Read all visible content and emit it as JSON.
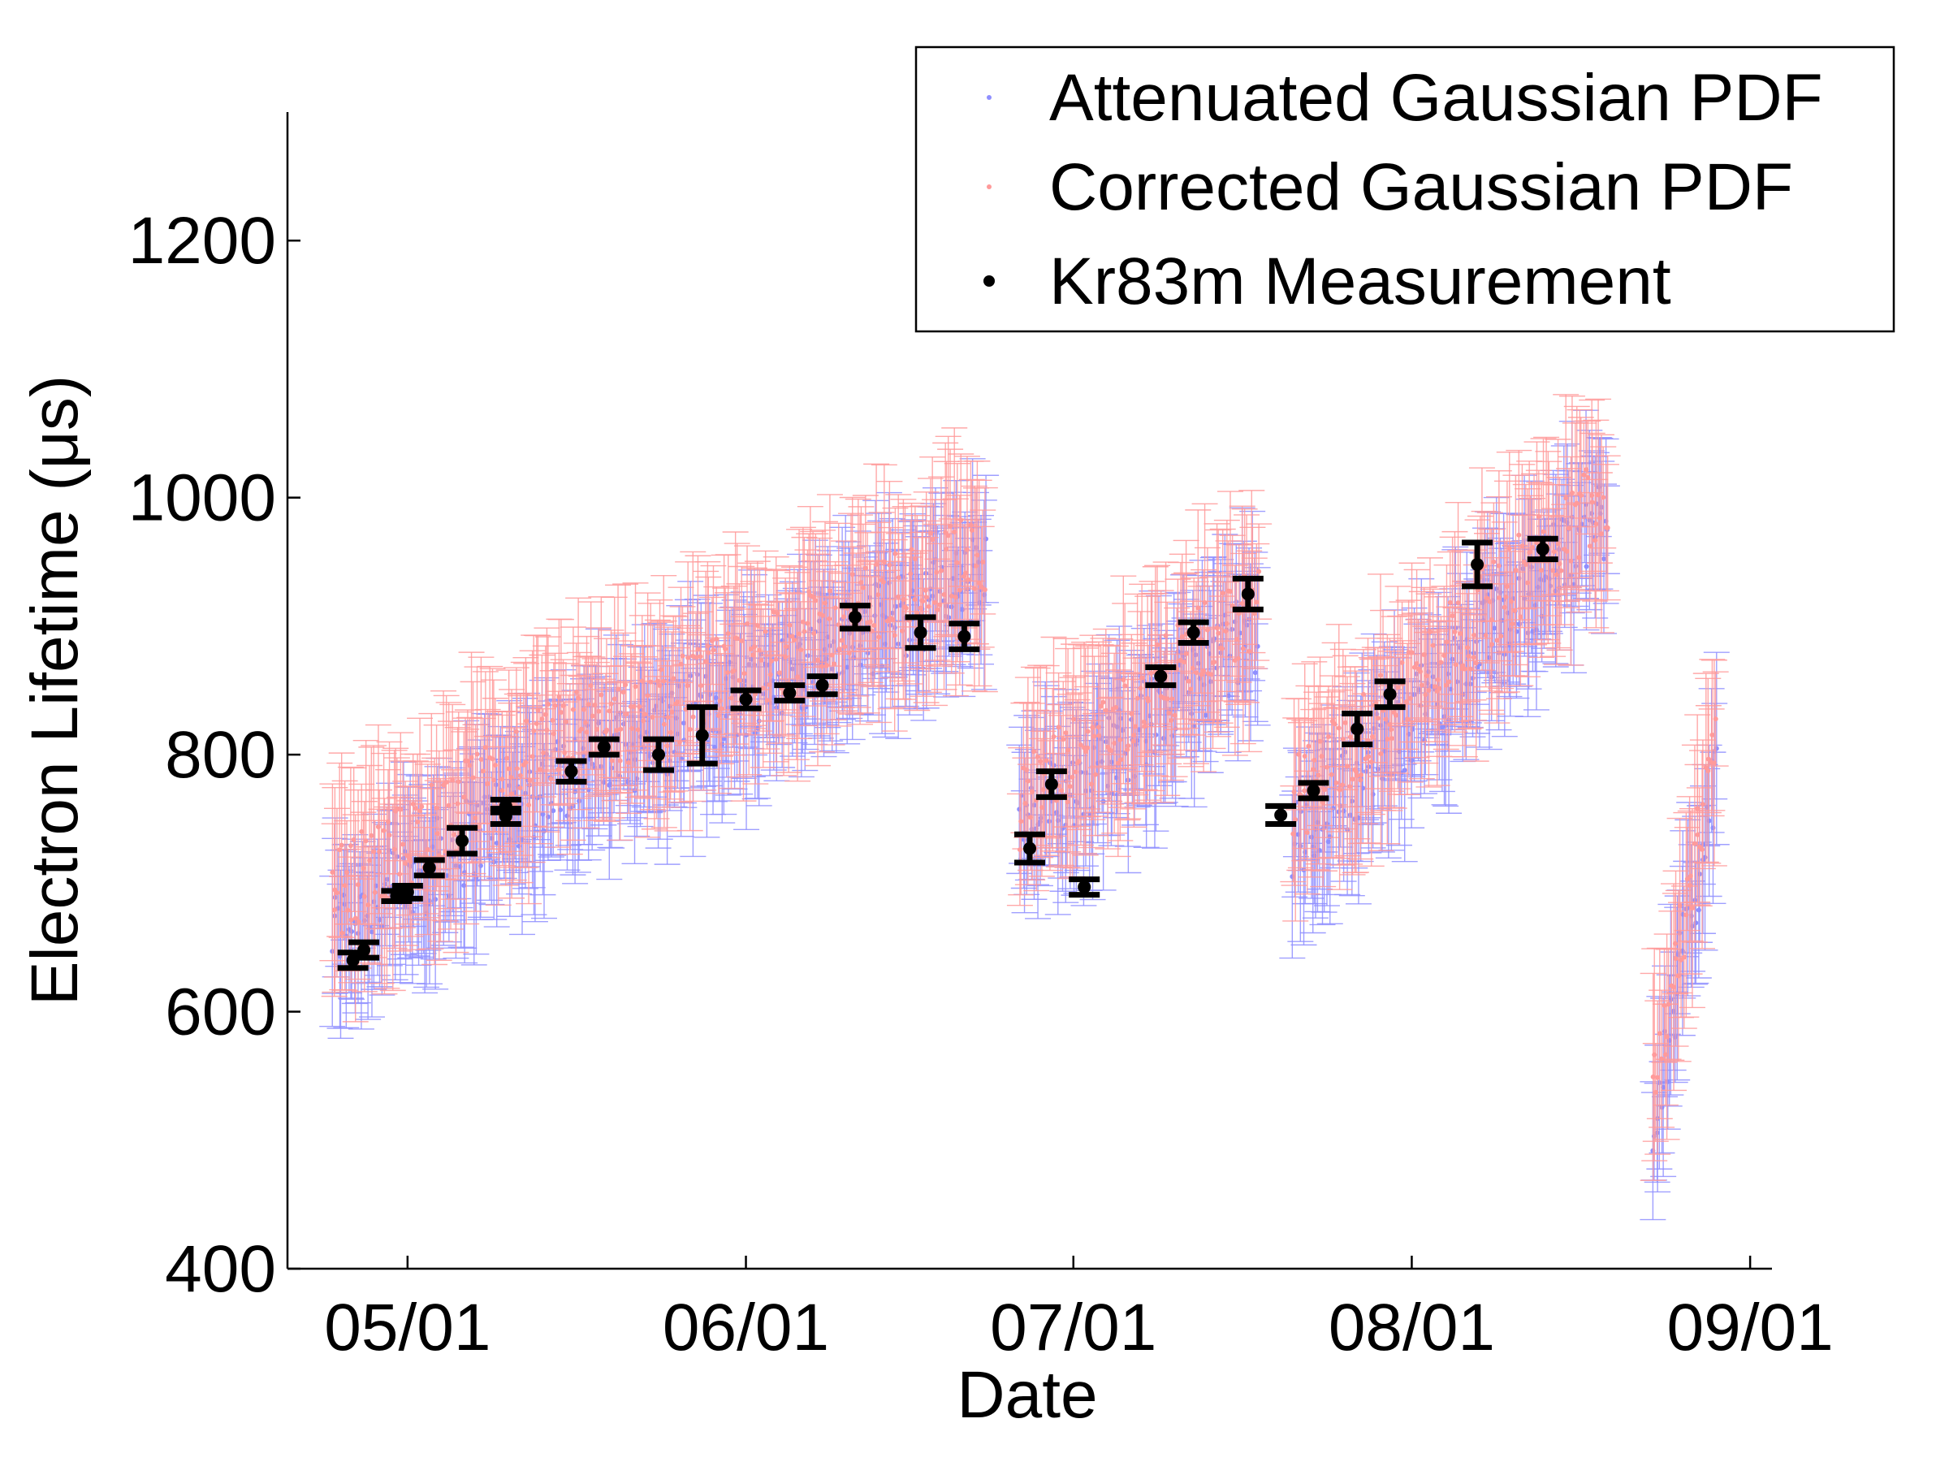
{
  "chart_data": {
    "type": "scatter",
    "title": "",
    "xlabel": "Date",
    "ylabel": "Electron Lifetime (μs)",
    "xlim": [
      "2013-04-20",
      "2013-09-03"
    ],
    "ylim": [
      400,
      1300
    ],
    "x_ticks": [
      "2013-05-01",
      "2013-06-01",
      "2013-07-01",
      "2013-08-01",
      "2013-09-01"
    ],
    "x_tick_labels": [
      "05/01",
      "06/01",
      "07/01",
      "08/01",
      "09/01"
    ],
    "y_ticks": [
      400,
      600,
      800,
      1000,
      1200
    ],
    "y_tick_labels": [
      "400",
      "600",
      "800",
      "1000",
      "1200"
    ],
    "grid": false,
    "legend_position": "top-right",
    "colors": {
      "attenuated": "#8f8fff",
      "corrected": "#ff9a9a",
      "kr": "#000000"
    },
    "series": [
      {
        "name": "Attenuated Gaussian PDF",
        "kind": "dense-points",
        "approx_error": 50,
        "segments": [
          [
            "2013-04-24",
            660,
            "2013-05-18",
            800
          ],
          [
            "2013-05-18",
            790,
            "2013-06-23",
            940
          ],
          [
            "2013-06-26",
            740,
            "2013-07-18",
            900
          ],
          [
            "2013-07-21",
            730,
            "2013-08-19",
            990
          ],
          [
            "2013-08-23",
            510,
            "2013-08-29",
            790
          ]
        ]
      },
      {
        "name": "Corrected Gaussian PDF",
        "kind": "dense-points",
        "approx_error": 55,
        "segments": [
          [
            "2013-04-24",
            690,
            "2013-05-18",
            830
          ],
          [
            "2013-05-18",
            810,
            "2013-06-23",
            960
          ],
          [
            "2013-06-26",
            760,
            "2013-07-18",
            920
          ],
          [
            "2013-07-21",
            760,
            "2013-08-19",
            1010
          ],
          [
            "2013-08-23",
            540,
            "2013-08-29",
            810
          ]
        ]
      },
      {
        "name": "Kr83m Measurement",
        "points": [
          {
            "x": "2013-04-26",
            "y": 640,
            "err": 6
          },
          {
            "x": "2013-04-27",
            "y": 648,
            "err": 6
          },
          {
            "x": "2013-04-30",
            "y": 690,
            "err": 4
          },
          {
            "x": "2013-05-01",
            "y": 693,
            "err": 5
          },
          {
            "x": "2013-05-03",
            "y": 712,
            "err": 6
          },
          {
            "x": "2013-05-06",
            "y": 733,
            "err": 10
          },
          {
            "x": "2013-05-10",
            "y": 752,
            "err": 6
          },
          {
            "x": "2013-05-10",
            "y": 760,
            "err": 5
          },
          {
            "x": "2013-05-16",
            "y": 787,
            "err": 8
          },
          {
            "x": "2013-05-19",
            "y": 806,
            "err": 6
          },
          {
            "x": "2013-05-24",
            "y": 800,
            "err": 12
          },
          {
            "x": "2013-05-28",
            "y": 815,
            "err": 22
          },
          {
            "x": "2013-06-01",
            "y": 843,
            "err": 7
          },
          {
            "x": "2013-06-05",
            "y": 848,
            "err": 6
          },
          {
            "x": "2013-06-08",
            "y": 854,
            "err": 7
          },
          {
            "x": "2013-06-11",
            "y": 907,
            "err": 9
          },
          {
            "x": "2013-06-17",
            "y": 895,
            "err": 12
          },
          {
            "x": "2013-06-21",
            "y": 892,
            "err": 10
          },
          {
            "x": "2013-06-27",
            "y": 727,
            "err": 11
          },
          {
            "x": "2013-06-29",
            "y": 777,
            "err": 10
          },
          {
            "x": "2013-07-02",
            "y": 697,
            "err": 6
          },
          {
            "x": "2013-07-09",
            "y": 861,
            "err": 7
          },
          {
            "x": "2013-07-12",
            "y": 895,
            "err": 8
          },
          {
            "x": "2013-07-17",
            "y": 925,
            "err": 12
          },
          {
            "x": "2013-07-20",
            "y": 753,
            "err": 7
          },
          {
            "x": "2013-07-23",
            "y": 772,
            "err": 6
          },
          {
            "x": "2013-07-27",
            "y": 820,
            "err": 12
          },
          {
            "x": "2013-07-30",
            "y": 847,
            "err": 10
          },
          {
            "x": "2013-08-07",
            "y": 948,
            "err": 17
          },
          {
            "x": "2013-08-13",
            "y": 960,
            "err": 8
          }
        ]
      }
    ]
  }
}
